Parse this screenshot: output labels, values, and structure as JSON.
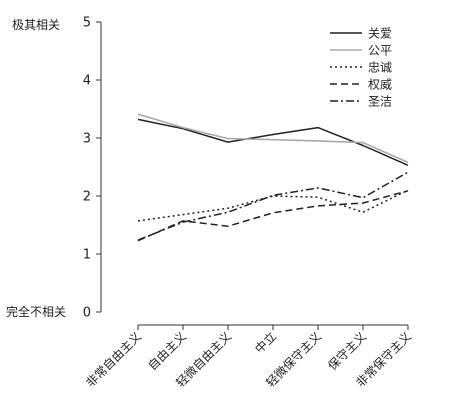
{
  "chart_data": {
    "type": "line",
    "title": "",
    "xlabel": "",
    "ylabel": "",
    "ylim": [
      0,
      5
    ],
    "yticks": [
      0,
      1,
      2,
      3,
      4,
      5
    ],
    "y_top_label": "极其相关",
    "y_bottom_label": "完全不相关",
    "grid": false,
    "legend_position": "top-right",
    "categories": [
      "非常自由主义",
      "自由主义",
      "轻微自由主义",
      "中立",
      "轻微保守主义",
      "保守主义",
      "非常保守主义"
    ],
    "series": [
      {
        "name": "关爱",
        "color": "#222222",
        "dash": "solid",
        "values": [
          3.32,
          3.16,
          2.93,
          3.06,
          3.18,
          2.87,
          2.53
        ]
      },
      {
        "name": "公平",
        "color": "#aaaaaa",
        "dash": "solid",
        "values": [
          3.41,
          3.18,
          2.99,
          2.97,
          2.95,
          2.92,
          2.58
        ]
      },
      {
        "name": "忠诚",
        "color": "#222222",
        "dash": "dotted",
        "values": [
          1.57,
          1.68,
          1.79,
          2.0,
          1.98,
          1.72,
          2.1
        ]
      },
      {
        "name": "权威",
        "color": "#222222",
        "dash": "dashed",
        "values": [
          1.23,
          1.57,
          1.48,
          1.71,
          1.83,
          1.88,
          2.09
        ]
      },
      {
        "name": "圣洁",
        "color": "#222222",
        "dash": "dashdot",
        "values": [
          1.24,
          1.55,
          1.72,
          2.01,
          2.14,
          1.97,
          2.41
        ]
      }
    ]
  }
}
